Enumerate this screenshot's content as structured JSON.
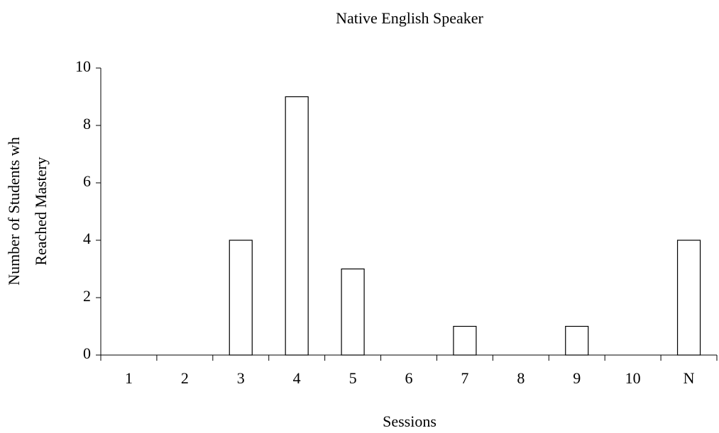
{
  "chart_data": {
    "type": "bar",
    "title": "Native English Speaker",
    "x_label": "Sessions",
    "y_label": [
      "Number of Students wh",
      "Reached Mastery"
    ],
    "categories": [
      "1",
      "2",
      "3",
      "4",
      "5",
      "6",
      "7",
      "8",
      "9",
      "10",
      "N"
    ],
    "values": [
      0,
      0,
      4,
      9,
      3,
      0,
      1,
      0,
      1,
      0,
      4
    ],
    "color": "#ffffff",
    "ylim": [
      0,
      10
    ],
    "yticks": [
      0,
      2,
      4,
      6,
      8,
      10
    ],
    "grid": false
  }
}
